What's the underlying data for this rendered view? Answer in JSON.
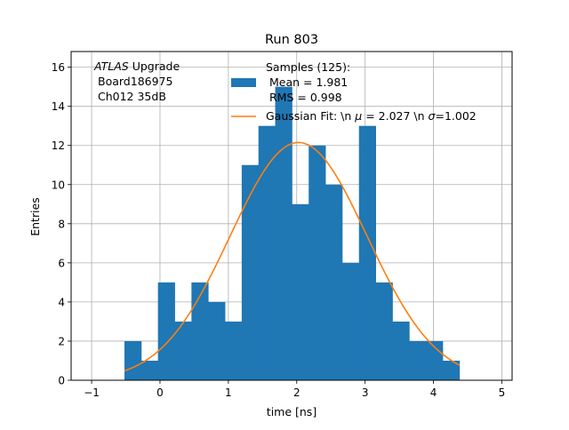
{
  "chart_data": {
    "type": "bar",
    "title": "Run 803",
    "xlabel": "time [ns]",
    "ylabel": "Entries",
    "xlim": [
      -1.3,
      5.15
    ],
    "ylim": [
      0,
      16.8
    ],
    "xticks": [
      -1,
      0,
      1,
      2,
      3,
      4,
      5
    ],
    "yticks": [
      0,
      2,
      4,
      6,
      8,
      10,
      12,
      14,
      16
    ],
    "grid": true,
    "bin_edges": [
      -0.52,
      -0.275,
      -0.03,
      0.215,
      0.46,
      0.705,
      0.95,
      1.195,
      1.44,
      1.685,
      1.93,
      2.175,
      2.42,
      2.665,
      2.91,
      3.155,
      3.4,
      3.645,
      3.89,
      4.135,
      4.38
    ],
    "counts": [
      2,
      1,
      5,
      3,
      5,
      4,
      3,
      11,
      13,
      15,
      9,
      12,
      10,
      6,
      13,
      5,
      3,
      2,
      2,
      1
    ],
    "series": [
      {
        "name": "Samples (125):\n Mean = 1.981\n RMS = 0.998",
        "kind": "histogram",
        "color": "#1f77b4"
      },
      {
        "name": "Gaussian Fit: \\n $\\mu$ = 2.027 \\n $\\sigma$=1.002",
        "kind": "line",
        "color": "#ff7f0e",
        "fit": {
          "amplitude": 12.15,
          "mu": 2.027,
          "sigma": 1.002,
          "x_range": [
            -0.52,
            4.38
          ]
        }
      }
    ],
    "legend_placement": "upper-center",
    "annotation": {
      "italic": "ATLAS",
      "rest": " Upgrade",
      "line2": "Board186975",
      "line3": "Ch012 35dB"
    }
  },
  "legend": {
    "samples_line1": "Samples (125):",
    "samples_line2": "Mean = 1.981",
    "samples_line3": "RMS = 0.998",
    "fit_label_a": "Gaussian Fit: \\n ",
    "fit_label_mu": "μ",
    "fit_label_b": " = 2.027 \\n ",
    "fit_label_sigma": "σ",
    "fit_label_c": "=1.002"
  }
}
